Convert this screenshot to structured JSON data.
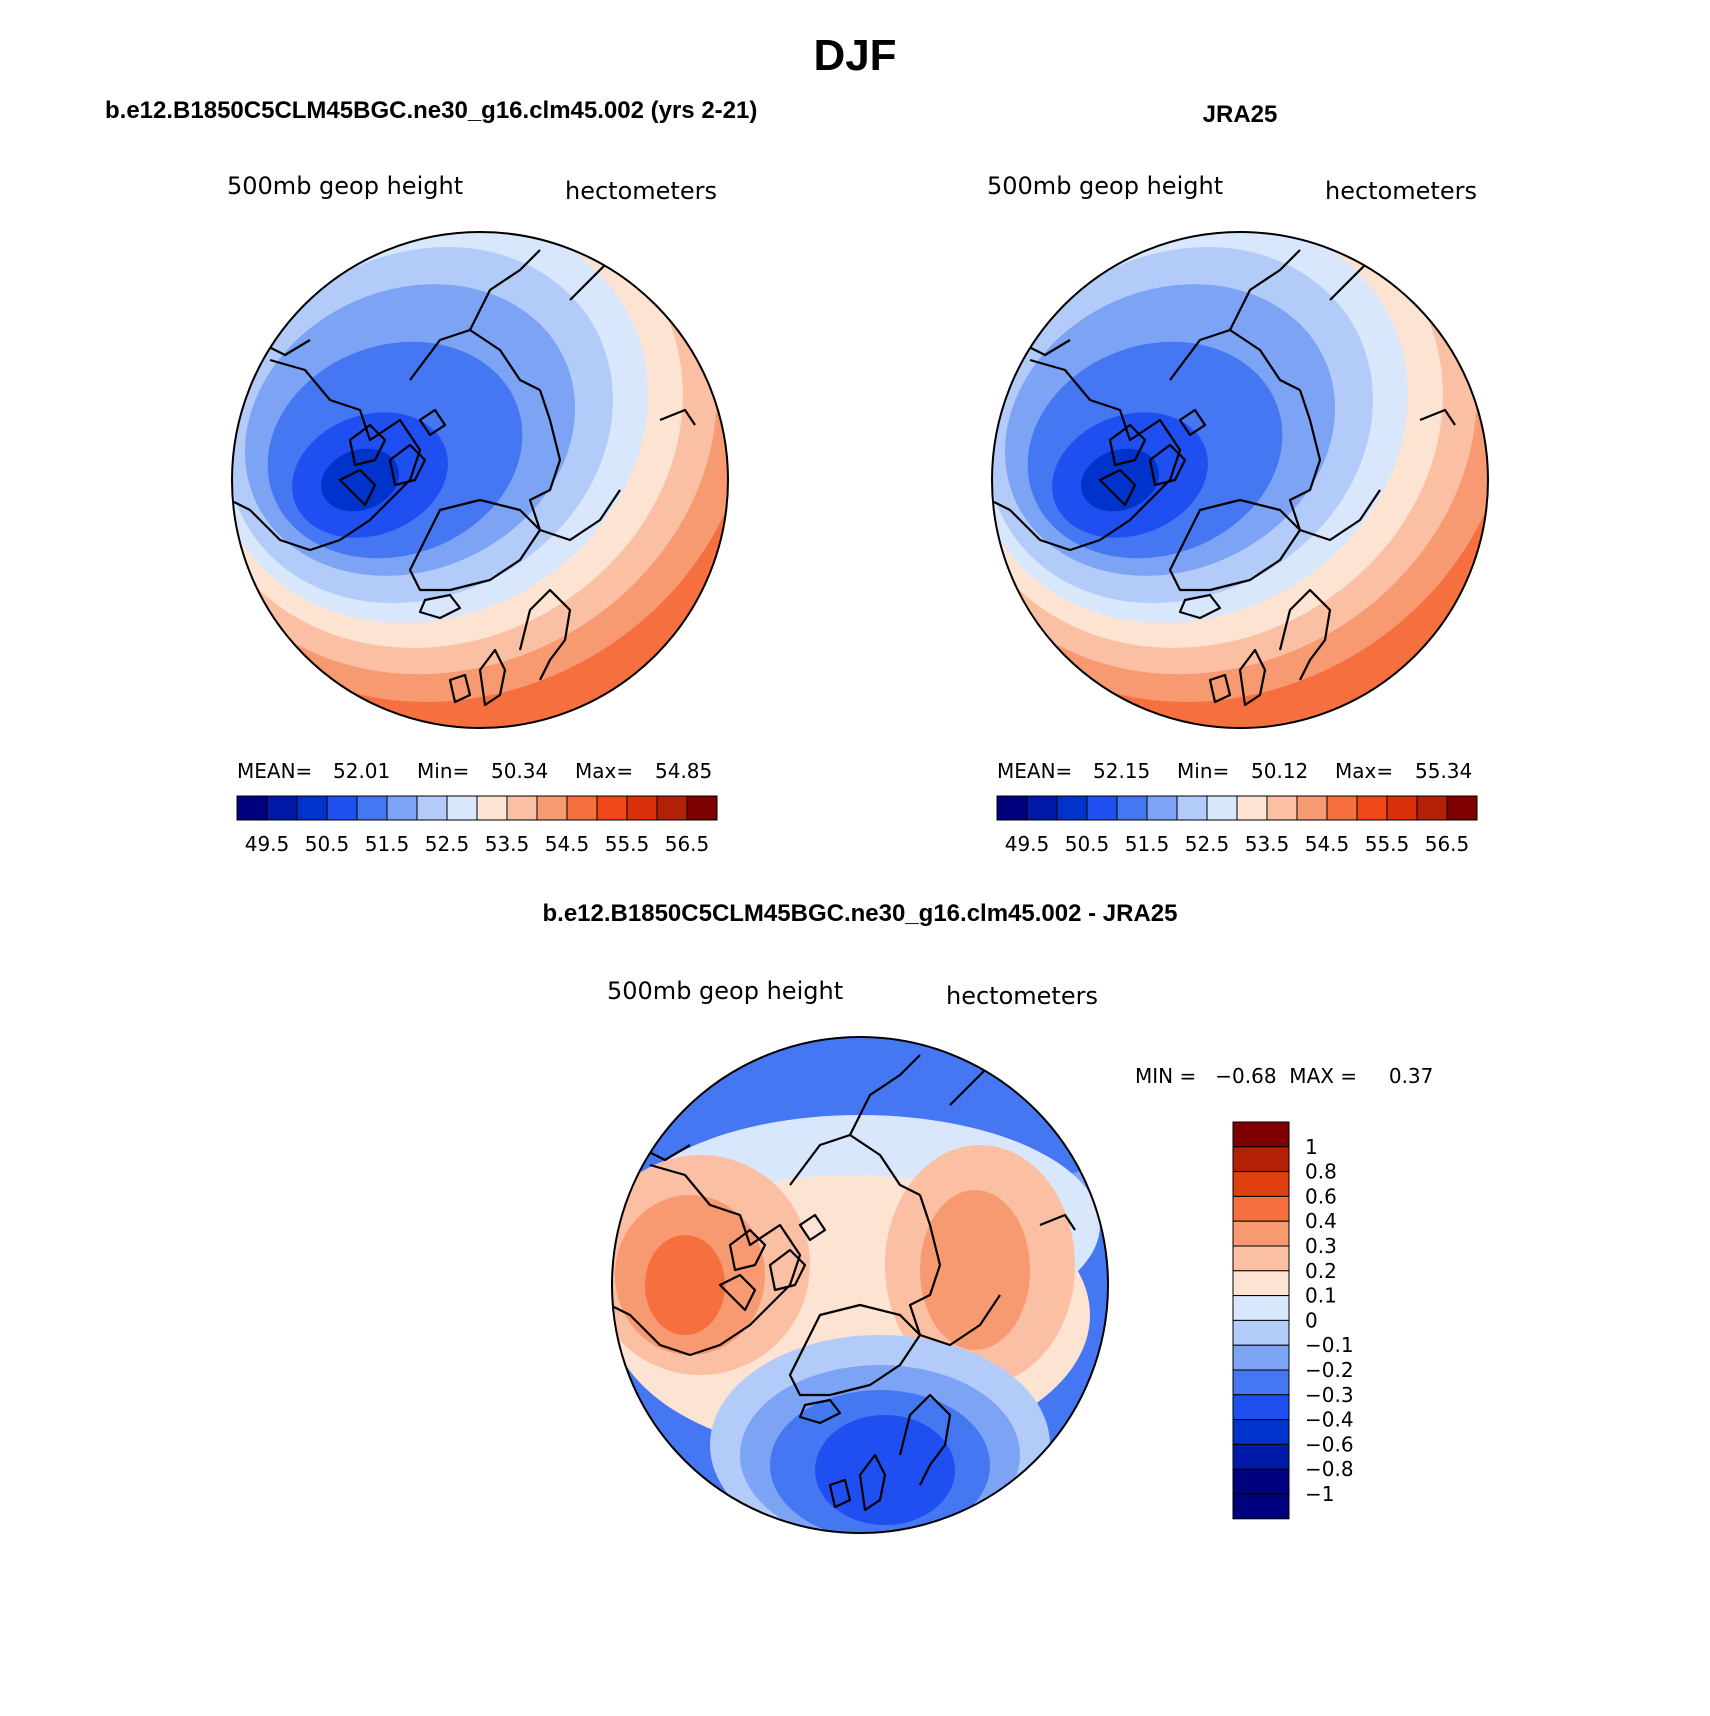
{
  "page_title": "DJF",
  "colors": {
    "abs_scale": [
      "#00007f",
      "#0019a8",
      "#0033cc",
      "#1f4ff0",
      "#4577f2",
      "#7da3f5",
      "#b3cbf9",
      "#d9e7fc",
      "#fde3d2",
      "#fbbfa3",
      "#f79971",
      "#f5703e",
      "#f04718",
      "#d9300a",
      "#b22008",
      "#7f0000"
    ],
    "diff_scale": [
      "#00007f",
      "#0019a8",
      "#0033cc",
      "#1f4ff0",
      "#4577f2",
      "#7da3f5",
      "#b3cbf9",
      "#d9e7fc",
      "#fde3d2",
      "#fbbfa3",
      "#f79971",
      "#f5703e",
      "#e0400f",
      "#b22008",
      "#7f0000"
    ]
  },
  "panels": [
    {
      "id": "model",
      "title": "b.e12.B1850C5CLM45BGC.ne30_g16.clm45.002 (yrs 2-21)",
      "left_label": "500mb  geop  height",
      "right_label": "hectometers",
      "stats": {
        "mean_label": "MEAN=",
        "mean": "52.01",
        "min_label": "Min=",
        "min": "50.34",
        "max_label": "Max=",
        "max": "54.85"
      },
      "colorbar_labels": [
        "49.5",
        "50.5",
        "51.5",
        "52.5",
        "53.5",
        "54.5",
        "55.5",
        "56.5"
      ]
    },
    {
      "id": "obs",
      "title": "JRA25",
      "left_label": "500mb  geop  height",
      "right_label": "hectometers",
      "stats": {
        "mean_label": "MEAN=",
        "mean": "52.15",
        "min_label": "Min=",
        "min": "50.12",
        "max_label": "Max=",
        "max": "55.34"
      },
      "colorbar_labels": [
        "49.5",
        "50.5",
        "51.5",
        "52.5",
        "53.5",
        "54.5",
        "55.5",
        "56.5"
      ]
    }
  ],
  "diff_panel": {
    "title": "b.e12.B1850C5CLM45BGC.ne30_g16.clm45.002 - JRA25",
    "left_label": "500mb  geop  height",
    "right_label": "hectometers",
    "minmax": "MIN =   −0.68  MAX =     0.37",
    "colorbar_labels": [
      "1",
      "0.8",
      "0.6",
      "0.4",
      "0.3",
      "0.2",
      "0.1",
      "0",
      "−0.1",
      "−0.2",
      "−0.3",
      "−0.4",
      "−0.6",
      "−0.8",
      "−1"
    ]
  }
}
